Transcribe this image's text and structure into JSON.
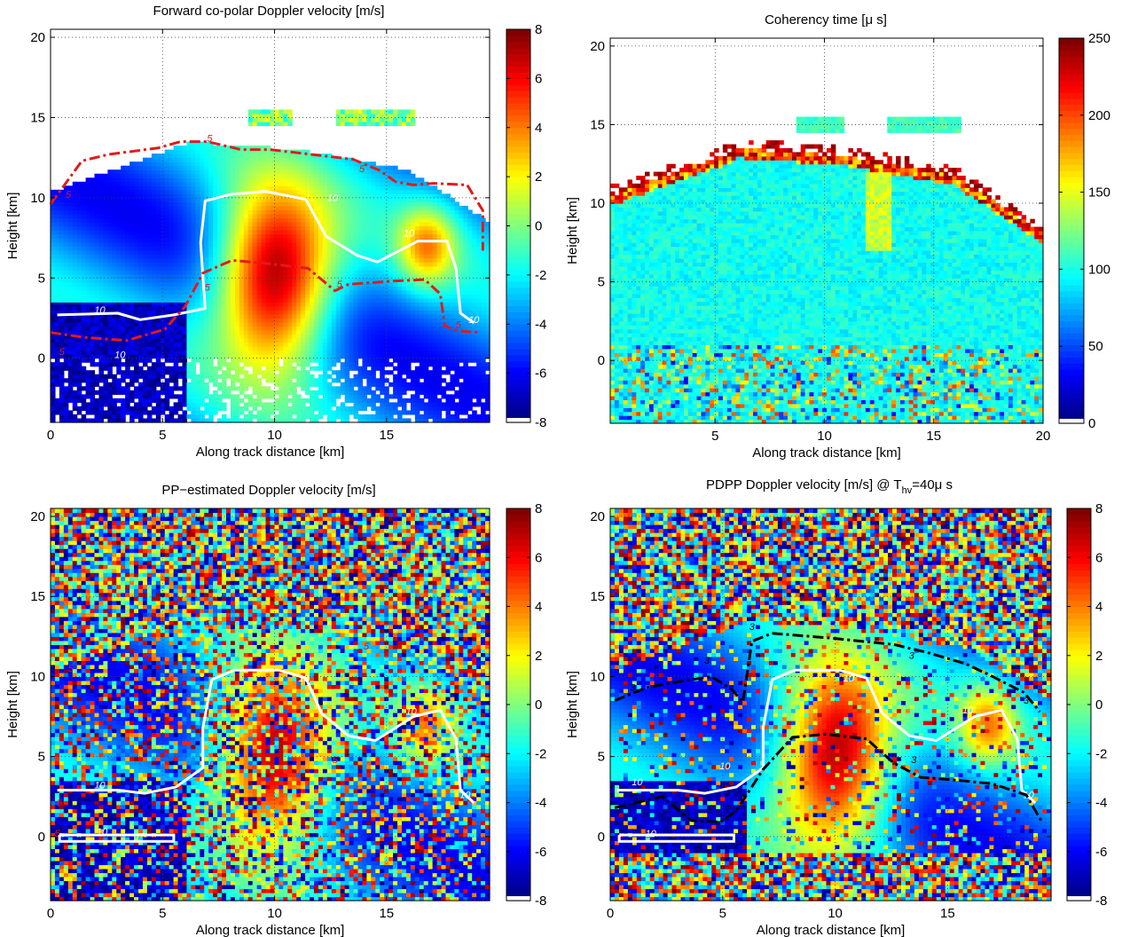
{
  "panels": [
    {
      "id": "top-left",
      "title": "Forward co-polar Doppler velocity [m/s]",
      "xlabel": "Along track distance [km]",
      "ylabel": "Height [km]",
      "xlim": [
        0,
        19.6
      ],
      "ylim": [
        -4,
        20.5
      ],
      "xticks": [
        0,
        5,
        10,
        15
      ],
      "yticks": [
        0,
        5,
        10,
        15,
        20
      ],
      "colormap": "jet",
      "colorbar": {
        "min": -8,
        "max": 8,
        "ticks": [
          8,
          6,
          4,
          2,
          0,
          -2,
          -4,
          -6,
          -8
        ]
      },
      "field": "storm",
      "mask_outside_storm": true,
      "contours": [
        {
          "name": "white-10",
          "color": "#ffffff",
          "dash": "solid",
          "label": "10",
          "labels_at": [
            [
              12.6,
              9.8
            ],
            [
              16.0,
              7.6
            ],
            [
              2.2,
              2.8
            ],
            [
              3.1,
              0.0
            ],
            [
              18.9,
              2.2
            ]
          ]
        },
        {
          "name": "red-5",
          "color": "#e11b1b",
          "dash": "dashdot",
          "label": "5",
          "labels_at": [
            [
              7.1,
              13.5
            ],
            [
              13.9,
              11.6
            ],
            [
              0.8,
              10.0
            ],
            [
              7.0,
              4.2
            ],
            [
              12.9,
              4.4
            ],
            [
              18.2,
              1.9
            ],
            [
              0.5,
              0.2
            ]
          ]
        }
      ]
    },
    {
      "id": "top-right",
      "title": "Coherency time [μ s]",
      "xlabel": "Along track distance [km]",
      "ylabel": "Height [km]",
      "xlim": [
        0.2,
        20.0
      ],
      "ylim": [
        -4,
        20.5
      ],
      "xticks": [
        5,
        10,
        15,
        20
      ],
      "yticks": [
        0,
        5,
        10,
        15,
        20
      ],
      "colormap": "jet",
      "colorbar": {
        "min": 0,
        "max": 250,
        "ticks": [
          250,
          200,
          150,
          100,
          50,
          0
        ]
      },
      "field": "coherency",
      "mask_outside_storm": true,
      "contours": []
    },
    {
      "id": "bottom-left",
      "title": "PP−estimated Doppler velocity [m/s]",
      "xlabel": "Along track distance [km]",
      "ylabel": "Height [km]",
      "xlim": [
        0,
        19.6
      ],
      "ylim": [
        -4,
        20.5
      ],
      "xticks": [
        0,
        5,
        10,
        15
      ],
      "yticks": [
        0,
        5,
        10,
        15,
        20
      ],
      "colormap": "jet",
      "colorbar": {
        "min": -8,
        "max": 8,
        "ticks": [
          8,
          6,
          4,
          2,
          0,
          -2,
          -4,
          -6,
          -8
        ]
      },
      "field": "noisy-storm",
      "mask_outside_storm": false,
      "contours": [
        {
          "name": "white-10",
          "color": "#ffffff",
          "dash": "solid",
          "label": "10",
          "labels_at": [
            [
              11.3,
              9.7
            ],
            [
              16.1,
              7.6
            ],
            [
              2.2,
              3.0
            ],
            [
              2.3,
              0.1
            ],
            [
              18.5,
              2.4
            ]
          ]
        },
        {
          "name": "red-5",
          "color": "#e11b1b",
          "dash": "dashdot",
          "label": "5",
          "labels_at": [
            [
              7.0,
              13.1
            ],
            [
              14.1,
              11.7
            ],
            [
              0.9,
              10.3
            ],
            [
              7.2,
              4.3
            ],
            [
              12.7,
              4.6
            ],
            [
              18.8,
              2.1
            ],
            [
              0.4,
              1.9
            ],
            [
              0.3,
              0.0
            ]
          ]
        }
      ]
    },
    {
      "id": "bottom-right",
      "title_parts": [
        "PDPP Doppler velocity [m/s] @ T",
        "hv",
        "=40μ s"
      ],
      "xlabel": "Along track distance [km]",
      "ylabel": "Height [km]",
      "xlim": [
        0,
        19.6
      ],
      "ylim": [
        -4,
        20.5
      ],
      "xticks": [
        0,
        5,
        10,
        15
      ],
      "yticks": [
        0,
        5,
        10,
        15,
        20
      ],
      "colormap": "jet",
      "colorbar": {
        "min": -8,
        "max": 8,
        "ticks": [
          8,
          6,
          4,
          2,
          0,
          -2,
          -4,
          -6,
          -8
        ]
      },
      "field": "pdpp",
      "mask_outside_storm": false,
      "contours": [
        {
          "name": "white-10",
          "color": "#ffffff",
          "dash": "solid",
          "label": "10",
          "labels_at": [
            [
              10.6,
              9.7
            ],
            [
              15.9,
              7.7
            ],
            [
              1.2,
              3.2
            ],
            [
              5.1,
              4.2
            ],
            [
              1.8,
              0.0
            ],
            [
              18.6,
              2.4
            ]
          ]
        },
        {
          "name": "black-3",
          "color": "#000000",
          "dash": "dashdot",
          "label": "3",
          "labels_at": [
            [
              6.3,
              12.9
            ],
            [
              13.4,
              11.1
            ],
            [
              1.0,
              9.1
            ],
            [
              4.3,
              10.8
            ],
            [
              5.2,
              2.6
            ],
            [
              1.1,
              2.0
            ],
            [
              13.5,
              4.6
            ],
            [
              18.5,
              8.3
            ]
          ]
        }
      ]
    }
  ],
  "chart_data": [
    {
      "type": "heatmap",
      "title": "Forward co-polar Doppler velocity [m/s]",
      "xlabel": "Along track distance [km]",
      "ylabel": "Height [km]",
      "xlim": [
        0,
        19.6
      ],
      "ylim": [
        -4,
        20.5
      ],
      "zlim": [
        -8,
        8
      ],
      "zunit": "m/s",
      "grid": true,
      "colorbar": "right",
      "notes": "Updraft region (positive, red) between ~7–13 km along track, heights 0–10 km; downdraft (negative, blue) outside; cloud top ~13.5 km.",
      "contours": [
        {
          "level": 10,
          "color": "white",
          "x": [
            0.3,
            3.0,
            4.0,
            5.5,
            6.9,
            6.7,
            6.9,
            8.0,
            9.6,
            11.4,
            12.3,
            13.7,
            14.6,
            16.4,
            17.7,
            18.1,
            18.3,
            18.9
          ],
          "y": [
            2.7,
            2.8,
            2.4,
            2.7,
            3.1,
            7.2,
            9.8,
            10.2,
            10.4,
            9.9,
            7.6,
            6.4,
            6.0,
            7.3,
            7.3,
            5.6,
            2.8,
            2.2
          ]
        },
        {
          "level": 5,
          "color": "red",
          "x": [
            0.0,
            1.4,
            2.6,
            4.8,
            5.8,
            7.0,
            8.5,
            9.8,
            13.5,
            14.7,
            15.4,
            16.2,
            17.1,
            18.6,
            19.3,
            19.3
          ],
          "y": [
            9.6,
            12.3,
            12.7,
            13.1,
            13.5,
            13.5,
            13.0,
            13.0,
            12.4,
            11.7,
            11.0,
            10.8,
            10.9,
            10.8,
            9.2,
            6.7
          ]
        },
        {
          "level": 5,
          "color": "red",
          "x": [
            0.0,
            1.5,
            3.4,
            5.1,
            6.0,
            6.8,
            8.1,
            9.7,
            11.5,
            12.7,
            13.3,
            15.2,
            16.7,
            17.4,
            17.6,
            18.2,
            19.2
          ],
          "y": [
            1.6,
            1.3,
            1.1,
            1.8,
            3.2,
            5.3,
            6.1,
            5.9,
            5.6,
            4.2,
            4.6,
            4.8,
            4.9,
            4.0,
            2.0,
            1.7,
            1.6
          ]
        }
      ]
    },
    {
      "type": "heatmap",
      "title": "Coherency time [μ s]",
      "xlabel": "Along track distance [km]",
      "ylabel": "Height [km]",
      "xlim": [
        0.2,
        20.0
      ],
      "ylim": [
        -4,
        20.5
      ],
      "zlim": [
        0,
        250
      ],
      "zunit": "μs",
      "grid": true,
      "colorbar": "right",
      "notes": "Mostly ~80–110 μs inside cloud; higher values (150–250) at cloud top edge and near-surface speckle; cirrus layer near 15 km."
    },
    {
      "type": "heatmap",
      "title": "PP−estimated Doppler velocity [m/s]",
      "xlabel": "Along track distance [km]",
      "ylabel": "Height [km]",
      "xlim": [
        0,
        19.6
      ],
      "ylim": [
        -4,
        20.5
      ],
      "zlim": [
        -8,
        8
      ],
      "zunit": "m/s",
      "grid": true,
      "colorbar": "right",
      "notes": "Same storm structure as top-left, heavily contaminated by random (aliased) noise across the full domain."
    },
    {
      "type": "heatmap",
      "title": "PDPP Doppler velocity [m/s] @ Thv=40μ s",
      "xlabel": "Along track distance [km]",
      "ylabel": "Height [km]",
      "xlim": [
        0,
        19.6
      ],
      "ylim": [
        -4,
        20.5
      ],
      "zlim": [
        -8,
        8
      ],
      "zunit": "m/s",
      "grid": true,
      "colorbar": "right",
      "notes": "Storm structure recovered within ~13 km height; noise outside. Contours: white = 10, black dash-dot = 3."
    }
  ]
}
